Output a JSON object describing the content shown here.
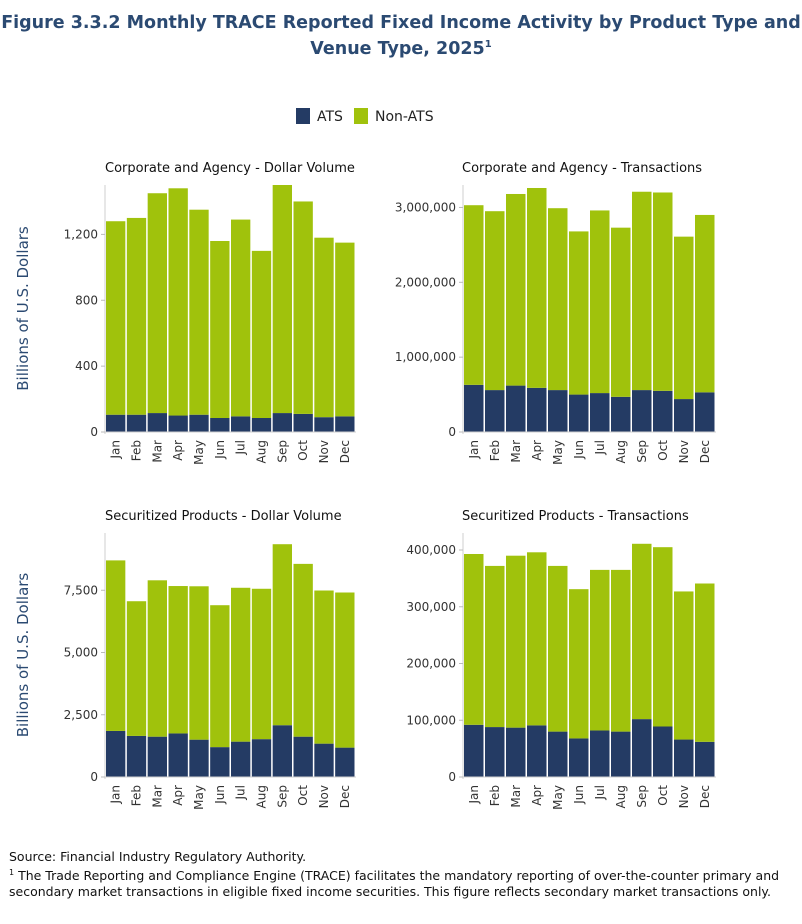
{
  "title_line1": "Figure 3.3.2 Monthly TRACE Reported Fixed Income Activity by Product Type and",
  "title_line2": "Venue Type, 2025",
  "title_sup": "1",
  "legend": [
    {
      "label": "ATS",
      "color": "#243b64"
    },
    {
      "label": "Non-ATS",
      "color": "#a0c20c"
    }
  ],
  "footer": {
    "source": "Source: Financial Industry Regulatory Authority.",
    "note_marker": "1",
    "note": "The Trade Reporting and Compliance Engine (TRACE) facilitates the mandatory reporting of over-the-counter primary and secondary market transactions in eligible fixed income securities. This figure reflects secondary market transactions only."
  },
  "chart_data": [
    {
      "type": "bar",
      "stacked": true,
      "title": "Corporate and Agency - Dollar Volume",
      "ylabel": "Billions of U.S. Dollars",
      "categories": [
        "Jan",
        "Feb",
        "Mar",
        "Apr",
        "May",
        "Jun",
        "Jul",
        "Aug",
        "Sep",
        "Oct",
        "Nov",
        "Dec"
      ],
      "ylim": [
        0,
        1500
      ],
      "yticks": [
        0,
        400,
        800,
        1200
      ],
      "ytick_labels": [
        "0",
        "400",
        "800",
        "1,200"
      ],
      "series": [
        {
          "name": "ATS",
          "values": [
            105,
            105,
            115,
            100,
            105,
            85,
            95,
            85,
            115,
            110,
            90,
            95
          ]
        },
        {
          "name": "Non-ATS",
          "values": [
            1175,
            1195,
            1335,
            1380,
            1245,
            1075,
            1195,
            1015,
            1385,
            1290,
            1090,
            1055
          ]
        }
      ]
    },
    {
      "type": "bar",
      "stacked": true,
      "title": "Corporate and Agency - Transactions",
      "ylabel": "",
      "categories": [
        "Jan",
        "Feb",
        "Mar",
        "Apr",
        "May",
        "Jun",
        "Jul",
        "Aug",
        "Sep",
        "Oct",
        "Nov",
        "Dec"
      ],
      "ylim": [
        0,
        3300000
      ],
      "yticks": [
        0,
        1000000,
        2000000,
        3000000
      ],
      "ytick_labels": [
        "0",
        "1,000,000",
        "2,000,000",
        "3,000,000"
      ],
      "series": [
        {
          "name": "ATS",
          "values": [
            630000,
            560000,
            620000,
            590000,
            560000,
            500000,
            520000,
            470000,
            560000,
            550000,
            440000,
            530000
          ]
        },
        {
          "name": "Non-ATS",
          "values": [
            2400000,
            2390000,
            2560000,
            2670000,
            2430000,
            2180000,
            2440000,
            2260000,
            2650000,
            2650000,
            2170000,
            2370000
          ]
        }
      ]
    },
    {
      "type": "bar",
      "stacked": true,
      "title": "Securitized Products - Dollar Volume",
      "ylabel": "Billions of U.S. Dollars",
      "categories": [
        "Jan",
        "Feb",
        "Mar",
        "Apr",
        "May",
        "Jun",
        "Jul",
        "Aug",
        "Sep",
        "Oct",
        "Nov",
        "Dec"
      ],
      "ylim": [
        0,
        9800
      ],
      "yticks": [
        0,
        2500,
        5000,
        7500
      ],
      "ytick_labels": [
        "0",
        "2,500",
        "5,000",
        "7,500"
      ],
      "series": [
        {
          "name": "ATS",
          "values": [
            1850,
            1650,
            1620,
            1750,
            1500,
            1200,
            1420,
            1520,
            2080,
            1620,
            1340,
            1180
          ]
        },
        {
          "name": "Non-ATS",
          "values": [
            6850,
            5410,
            6280,
            5920,
            6160,
            5700,
            6180,
            6040,
            7270,
            6940,
            6150,
            6230
          ]
        }
      ]
    },
    {
      "type": "bar",
      "stacked": true,
      "title": "Securitized Products - Transactions",
      "ylabel": "",
      "categories": [
        "Jan",
        "Feb",
        "Mar",
        "Apr",
        "May",
        "Jun",
        "Jul",
        "Aug",
        "Sep",
        "Oct",
        "Nov",
        "Dec"
      ],
      "ylim": [
        0,
        430000
      ],
      "yticks": [
        0,
        100000,
        200000,
        300000,
        400000
      ],
      "ytick_labels": [
        "0",
        "100,000",
        "200,000",
        "300,000",
        "400,000"
      ],
      "series": [
        {
          "name": "ATS",
          "values": [
            92000,
            88000,
            87000,
            91000,
            80000,
            68000,
            82000,
            80000,
            102000,
            89000,
            66000,
            62000
          ]
        },
        {
          "name": "Non-ATS",
          "values": [
            301000,
            284000,
            303000,
            305000,
            292000,
            263000,
            283000,
            285000,
            309000,
            316000,
            261000,
            279000
          ]
        }
      ]
    }
  ]
}
